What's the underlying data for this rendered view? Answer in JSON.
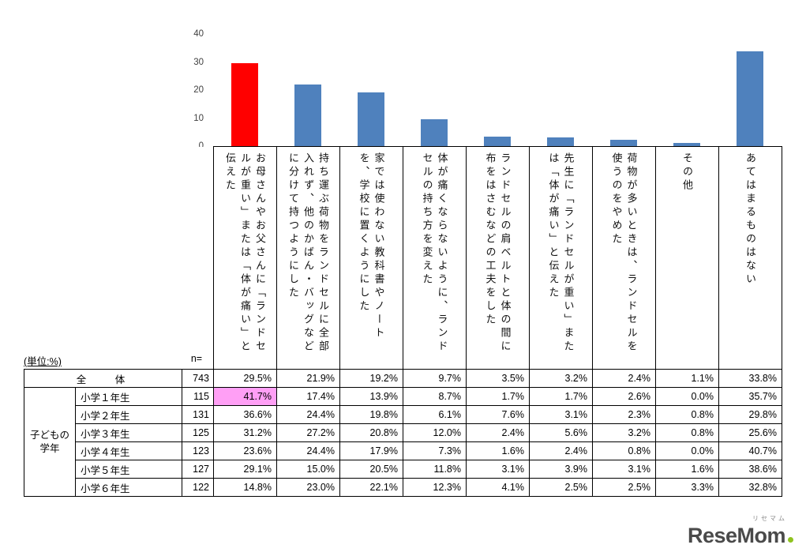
{
  "unit_label": "(単位:%)",
  "n_label": "n=",
  "chart_data": {
    "type": "bar",
    "title": "",
    "xlabel": "",
    "ylabel": "",
    "series_name": "全体",
    "categories": [
      "お母さんやお父さんに「ランドセルが重い」または「体が痛い」と伝えた",
      "持ち運ぶ荷物をランドセルに全部入れず、他のかばん・バッグなどに分けて持つようにした",
      "家では使わない教科書やノートを、学校に置くようにした",
      "体が痛くならないように、ランドセルの持ち方を変えた",
      "ランドセルの肩ベルトと体の間に布をはさむなどの工夫をした",
      "先生に「ランドセルが重い」または「体が痛い」と伝えた",
      "荷物が多いときは、ランドセルを使うのをやめた",
      "その他",
      "あてはまるものはない"
    ],
    "values": [
      29.5,
      21.9,
      19.2,
      9.7,
      3.5,
      3.2,
      2.4,
      1.1,
      33.8
    ],
    "ylim": [
      0,
      40
    ],
    "y_ticks": [
      0,
      10,
      20,
      30,
      40
    ],
    "grid": false,
    "legend": "none",
    "bar_color": "#4F81BD",
    "highlight_bar_index": 0,
    "highlight_bar_color": "#FF0000"
  },
  "table": {
    "group_label": "子どもの学年",
    "rows": [
      {
        "label": "全　体",
        "n": "743",
        "values": [
          "29.5%",
          "21.9%",
          "19.2%",
          "9.7%",
          "3.5%",
          "3.2%",
          "2.4%",
          "1.1%",
          "33.8%"
        ]
      },
      {
        "label": "小学１年生",
        "n": "115",
        "values": [
          "41.7%",
          "17.4%",
          "13.9%",
          "8.7%",
          "1.7%",
          "1.7%",
          "2.6%",
          "0.0%",
          "35.7%"
        ]
      },
      {
        "label": "小学２年生",
        "n": "131",
        "values": [
          "36.6%",
          "24.4%",
          "19.8%",
          "6.1%",
          "7.6%",
          "3.1%",
          "2.3%",
          "0.8%",
          "29.8%"
        ]
      },
      {
        "label": "小学３年生",
        "n": "125",
        "values": [
          "31.2%",
          "27.2%",
          "20.8%",
          "12.0%",
          "2.4%",
          "5.6%",
          "3.2%",
          "0.8%",
          "25.6%"
        ]
      },
      {
        "label": "小学４年生",
        "n": "123",
        "values": [
          "23.6%",
          "24.4%",
          "17.9%",
          "7.3%",
          "1.6%",
          "2.4%",
          "0.8%",
          "0.0%",
          "40.7%"
        ]
      },
      {
        "label": "小学５年生",
        "n": "127",
        "values": [
          "29.1%",
          "15.0%",
          "20.5%",
          "11.8%",
          "3.1%",
          "3.9%",
          "3.1%",
          "1.6%",
          "38.6%"
        ]
      },
      {
        "label": "小学６年生",
        "n": "122",
        "values": [
          "14.8%",
          "23.0%",
          "22.1%",
          "12.3%",
          "4.1%",
          "2.5%",
          "2.5%",
          "3.3%",
          "32.8%"
        ]
      }
    ],
    "highlight_cell": {
      "row_index": 1,
      "col_index": 0,
      "color": "#FF9FF5"
    }
  },
  "logo": {
    "text": "ReseMom",
    "kana": "リセマム",
    "accent_color": "#8FC31F",
    "text_color": "#4A4A4A"
  }
}
